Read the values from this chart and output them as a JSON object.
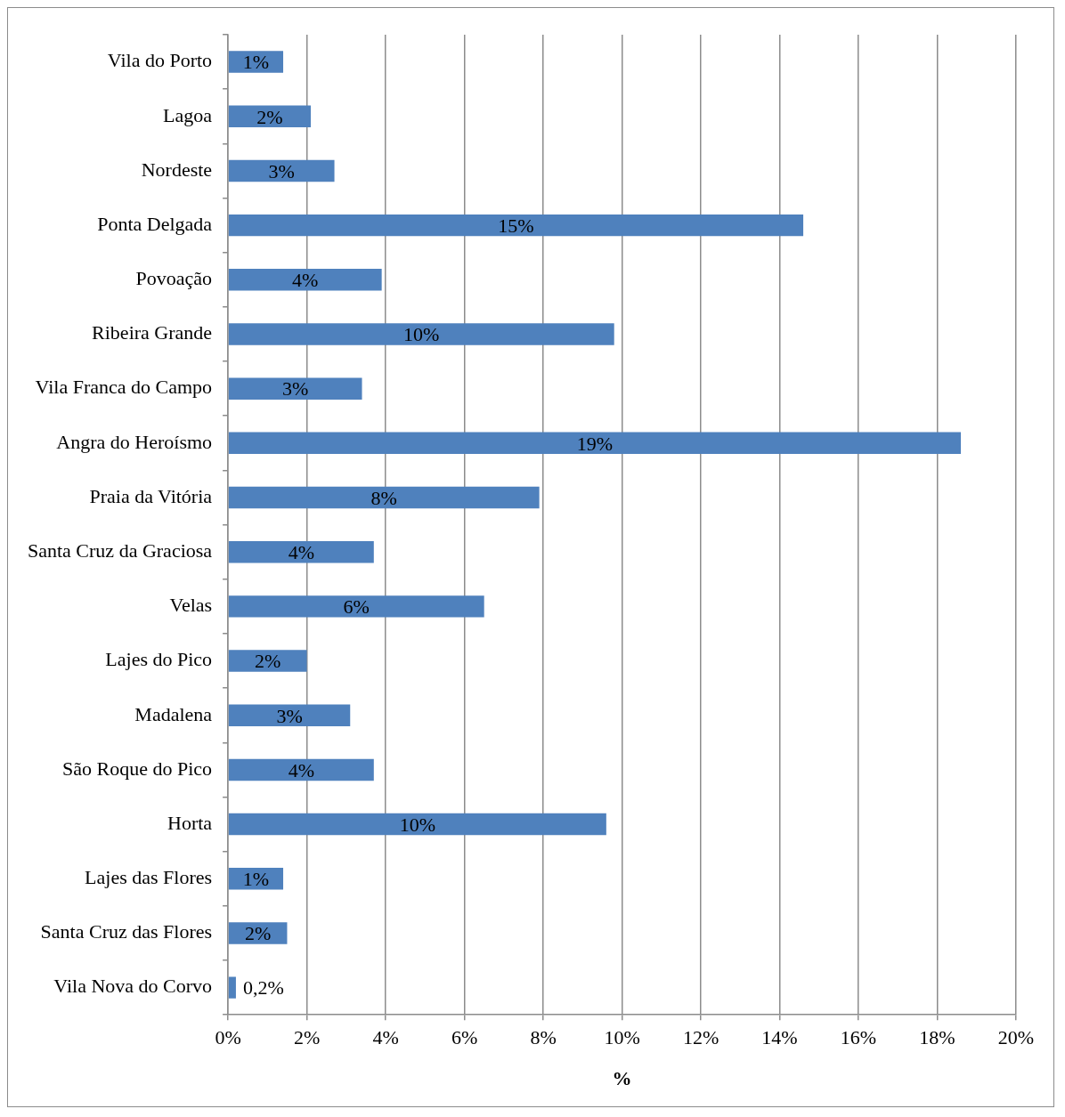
{
  "chart_data": {
    "type": "bar",
    "orientation": "horizontal",
    "xlabel": "%",
    "categories": [
      "Vila do Porto",
      "Lagoa",
      "Nordeste",
      "Ponta Delgada",
      "Povoação",
      "Ribeira Grande",
      "Vila Franca do Campo",
      "Angra do Heroísmo",
      "Praia da Vitória",
      "Santa Cruz da Graciosa",
      "Velas",
      "Lajes do Pico",
      "Madalena",
      "São Roque do Pico",
      "Horta",
      "Lajes das Flores",
      "Santa Cruz das Flores",
      "Vila Nova do Corvo"
    ],
    "values": [
      1.4,
      2.1,
      2.7,
      14.6,
      3.9,
      9.8,
      3.4,
      18.6,
      7.9,
      3.7,
      6.5,
      2.0,
      3.1,
      3.7,
      9.6,
      1.4,
      1.5,
      0.2
    ],
    "value_labels": [
      "1%",
      "2%",
      "3%",
      "15%",
      "4%",
      "10%",
      "3%",
      "19%",
      "8%",
      "4%",
      "6%",
      "2%",
      "3%",
      "4%",
      "10%",
      "1%",
      "2%",
      "0,2%"
    ],
    "color": "#4f81bd",
    "xlim": [
      0,
      20
    ],
    "xticks": [
      {
        "value": 0,
        "label": "0%"
      },
      {
        "value": 2,
        "label": "2%"
      },
      {
        "value": 4,
        "label": "4%"
      },
      {
        "value": 6,
        "label": "6%"
      },
      {
        "value": 8,
        "label": "8%"
      },
      {
        "value": 10,
        "label": "10%"
      },
      {
        "value": 12,
        "label": "12%"
      },
      {
        "value": 14,
        "label": "14%"
      },
      {
        "value": 16,
        "label": "16%"
      },
      {
        "value": 18,
        "label": "18%"
      },
      {
        "value": 20,
        "label": "20%"
      }
    ],
    "grid": "x",
    "legend": false
  }
}
